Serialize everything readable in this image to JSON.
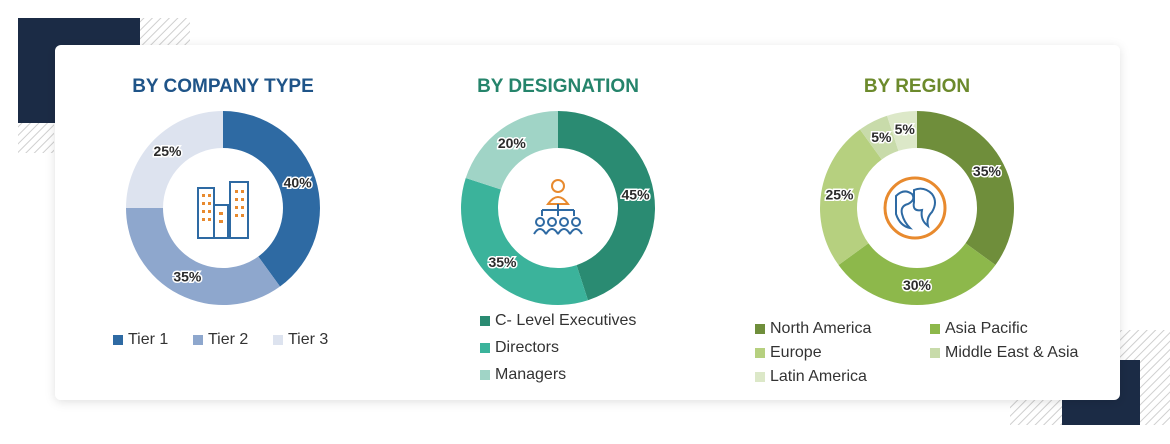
{
  "chart_data": [
    {
      "type": "pie",
      "title": "BY COMPANY TYPE",
      "categories": [
        "Tier 1",
        "Tier 2",
        "Tier 3"
      ],
      "values": [
        40,
        35,
        25
      ],
      "value_labels": [
        "40%",
        "35%",
        "25%"
      ],
      "colors": [
        "#2e6aa3",
        "#8ea7cd",
        "#dde3ef"
      ]
    },
    {
      "type": "pie",
      "title": "BY DESIGNATION",
      "categories": [
        "C- Level Executives",
        "Directors",
        "Managers"
      ],
      "values": [
        45,
        35,
        20
      ],
      "value_labels": [
        "45%",
        "35%",
        "20%"
      ],
      "colors": [
        "#2a8b72",
        "#3bb39b",
        "#a0d4c6"
      ]
    },
    {
      "type": "pie",
      "title": "BY REGION",
      "categories": [
        "North America",
        "Asia Pacific",
        "Europe",
        "Middle East & Asia",
        "Latin America"
      ],
      "values": [
        35,
        30,
        25,
        5,
        5
      ],
      "value_labels": [
        "35%",
        "30%",
        "25%",
        "5%",
        "5%"
      ],
      "colors": [
        "#6f8e3b",
        "#8db84b",
        "#b6d07f",
        "#c8dbaa",
        "#dce8c8"
      ]
    }
  ]
}
